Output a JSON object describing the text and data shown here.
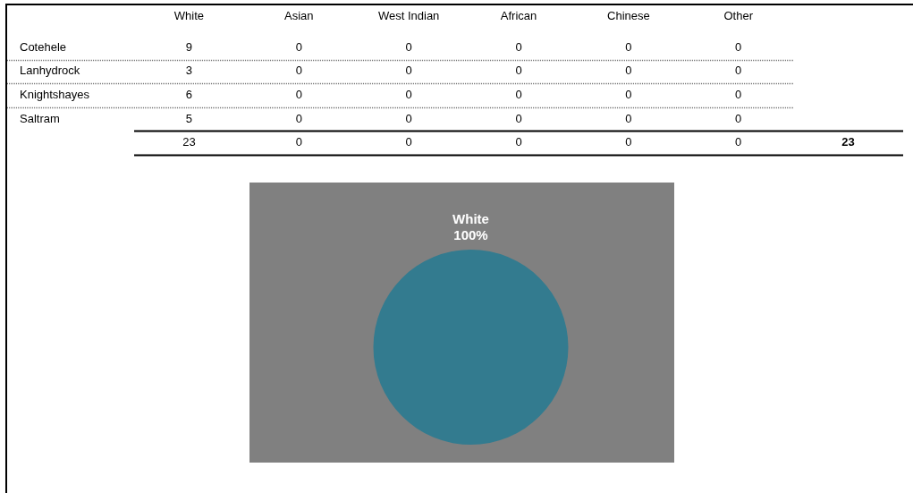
{
  "chart_data": [
    {
      "type": "heatmap",
      "categories": [
        "White",
        "Asian",
        "West Indian",
        "African",
        "Chinese",
        "Other",
        null
      ],
      "y_categories": [
        "Cotehele",
        "Lanhydrock",
        "Knightshayes",
        "Saltram",
        null
      ],
      "cells": [
        [
          9,
          0,
          0,
          0,
          0,
          0,
          null
        ],
        [
          3,
          0,
          0,
          0,
          0,
          0,
          null
        ],
        [
          6,
          0,
          0,
          0,
          0,
          0,
          null
        ],
        [
          5,
          0,
          0,
          0,
          0,
          0,
          null
        ],
        [
          23,
          0,
          0,
          0,
          0,
          0,
          23
        ]
      ],
      "data_labels": true,
      "grid": true
    },
    {
      "type": "pie",
      "categories": [
        "White"
      ],
      "values": [
        100
      ],
      "colors": [
        "#337b8f"
      ],
      "value_labels": [
        "100%"
      ]
    }
  ]
}
